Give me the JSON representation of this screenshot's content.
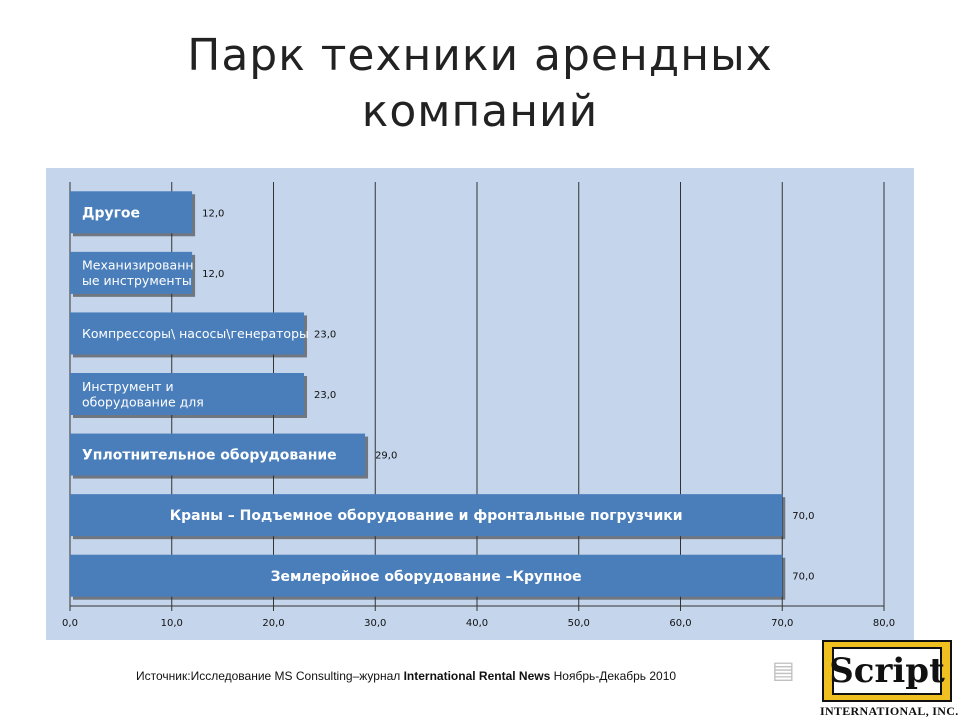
{
  "slide": {
    "title_line1": "Парк техники арендных",
    "title_line2": "компаний",
    "source_prefix": "Источник:Исследование MS Consulting–журнал ",
    "source_bold": "International Rental News",
    "source_suffix": " Ноябрь-Декабрь 2010",
    "logo_text": "Script",
    "logo_subtext": "INTERNATIONAL, INC."
  },
  "colors": {
    "plot_background": "#c5d6ec",
    "bar_fill": "#4a7ebb",
    "bar_label": "#ffffff",
    "grid": "#333333",
    "logo_gold": "#f0c020"
  },
  "chart_data": {
    "type": "bar",
    "orientation": "horizontal",
    "title": "",
    "xlabel": "",
    "ylabel": "",
    "xlim": [
      0,
      80
    ],
    "x_ticks": [
      "0,0",
      "10,0",
      "20,0",
      "30,0",
      "40,0",
      "50,0",
      "60,0",
      "70,0",
      "80,0"
    ],
    "grid": true,
    "categories": [
      "Другое",
      "Механизированные инструменты",
      "Компрессоры\\ насосы\\генераторы",
      "Инструмент и оборудование для",
      "Уплотнительное оборудование",
      "Краны – Подъемное оборудование и фронтальные погрузчики",
      "Землеройное оборудование –Крупное"
    ],
    "category_display_lines": [
      [
        "Другое"
      ],
      [
        "Механизированн",
        "ые инструменты"
      ],
      [
        "Компрессоры\\ насосы\\генераторы"
      ],
      [
        "Инструмент и",
        "оборудование для"
      ],
      [
        "Уплотнительное оборудование"
      ],
      [
        "Краны – Подъемное оборудование и фронтальные погрузчики"
      ],
      [
        "Землеройное оборудование –Крупное"
      ]
    ],
    "values": [
      12.0,
      12.0,
      23.0,
      23.0,
      29.0,
      70.0,
      70.0
    ],
    "value_labels": [
      "12,0",
      "12,0",
      "23,0",
      "23,0",
      "29,0",
      "70,0",
      "70,0"
    ],
    "label_bold": [
      true,
      false,
      false,
      false,
      true,
      true,
      true
    ],
    "label_centered": [
      false,
      false,
      false,
      false,
      false,
      true,
      true
    ]
  }
}
